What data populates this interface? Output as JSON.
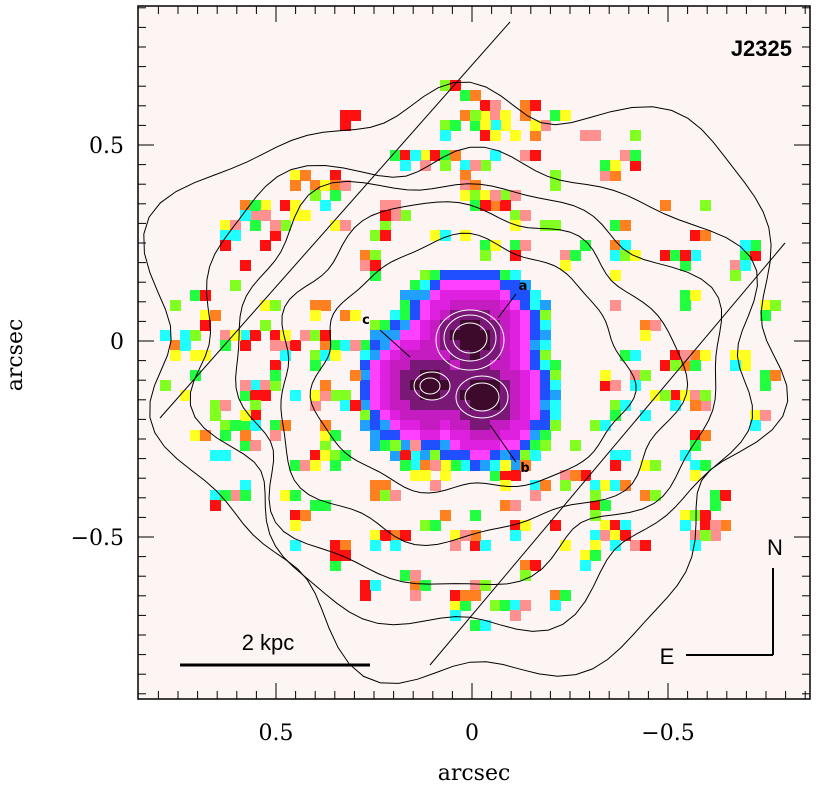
{
  "chart_data": {
    "type": "heatmap",
    "title": "J2325",
    "xlabel": "arcsec",
    "ylabel": "arcsec",
    "xlim": [
      0.85,
      -0.9
    ],
    "ylim": [
      -0.9,
      0.85
    ],
    "x_inverted": true,
    "x_ticks": [
      {
        "value": 0.5,
        "label": "0.5"
      },
      {
        "value": 0,
        "label": "0"
      },
      {
        "value": -0.5,
        "label": "−0.5"
      }
    ],
    "y_ticks": [
      {
        "value": 0.5,
        "label": "0.5"
      },
      {
        "value": 0,
        "label": "0"
      },
      {
        "value": -0.5,
        "label": "−0.5"
      }
    ],
    "background_color": "#fdf5f3",
    "components": [
      {
        "label": "a",
        "x": 0.0,
        "y": 0.0
      },
      {
        "label": "b",
        "x": -0.03,
        "y": -0.15
      },
      {
        "label": "c",
        "x": 0.12,
        "y": -0.12
      }
    ],
    "scale_bar": {
      "label": "2 kpc"
    },
    "compass": {
      "north": "N",
      "east": "E"
    },
    "palette": [
      "#3d0a2c",
      "#7a1878",
      "#c41cc0",
      "#e020e0",
      "#ff40ff",
      "#1f4fff",
      "#20a0ff",
      "#20ffff",
      "#20ff40",
      "#80ff20",
      "#ffff20",
      "#ff8020",
      "#ff1010",
      "#ff9090"
    ]
  }
}
